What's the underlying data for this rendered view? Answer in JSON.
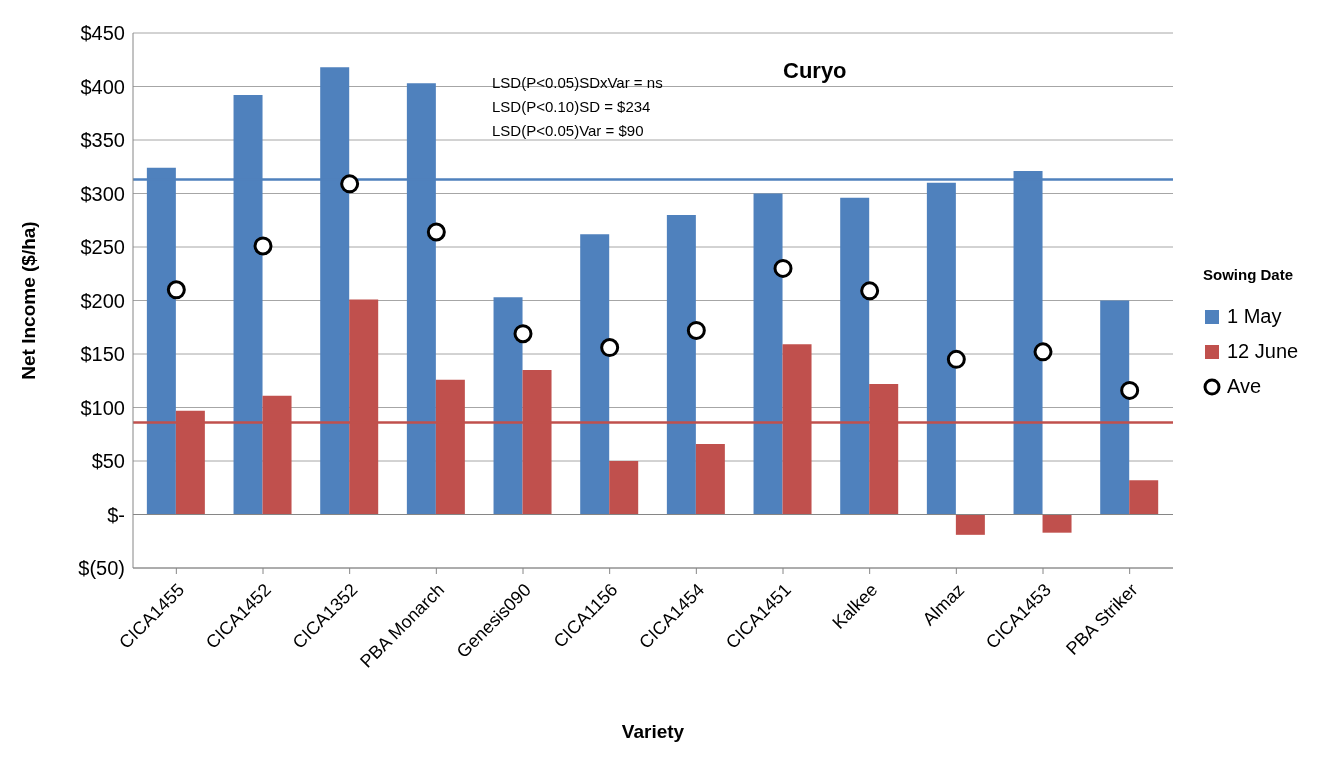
{
  "chart_data": {
    "type": "bar",
    "title": "Curyo",
    "xlabel": "Variety",
    "ylabel": "Net Income ($/ha)",
    "legend_title": "Sowing Date",
    "categories": [
      "CICA1455",
      "CICA1452",
      "CICA1352",
      "PBA Monarch",
      "Genesis090",
      "CICA1156",
      "CICA1454",
      "CICA1451",
      "Kalkee",
      "Almaz",
      "CICA1453",
      "PBA Striker"
    ],
    "series": [
      {
        "name": "1 May",
        "color": "#4f81bd",
        "values": [
          324,
          392,
          418,
          403,
          203,
          262,
          280,
          300,
          296,
          310,
          321,
          200
        ]
      },
      {
        "name": "12 June",
        "color": "#c0504d",
        "values": [
          97,
          111,
          201,
          126,
          135,
          50,
          66,
          159,
          122,
          -19,
          -17,
          32
        ]
      },
      {
        "name": "Ave",
        "type": "scatter",
        "marker": "circle",
        "color": "#000000",
        "x": [
          "CICA1455",
          "CICA1452",
          "CICA1352",
          "PBA Monarch",
          "Genesis090",
          "CICA1156",
          "CICA1454",
          "CICA1451",
          "Kalkee",
          "Almaz",
          "CICA1453",
          "PBA Striker"
        ],
        "values": [
          210,
          251,
          309,
          264,
          169,
          156,
          172,
          230,
          209,
          145,
          152,
          116
        ]
      }
    ],
    "ylim": [
      -50,
      450
    ],
    "yticks": [
      {
        "value": -50,
        "label": "$(50)"
      },
      {
        "value": 0,
        "label": "$-"
      },
      {
        "value": 50,
        "label": "$50"
      },
      {
        "value": 100,
        "label": "$100"
      },
      {
        "value": 150,
        "label": "$150"
      },
      {
        "value": 200,
        "label": "$200"
      },
      {
        "value": 250,
        "label": "$250"
      },
      {
        "value": 300,
        "label": "$300"
      },
      {
        "value": 350,
        "label": "$350"
      },
      {
        "value": 400,
        "label": "$400"
      },
      {
        "value": 450,
        "label": "$450"
      }
    ],
    "ref_lines": [
      {
        "axis": "y",
        "value": 313,
        "color": "#4f81bd"
      },
      {
        "axis": "y",
        "value": 86,
        "color": "#c0504d"
      }
    ],
    "annotations": [
      "LSD(P<0.05)SDxVar = ns",
      "LSD(P<0.10)SD = $234",
      "LSD(P<0.05)Var = $90"
    ],
    "grid": "y",
    "legend": "right"
  }
}
